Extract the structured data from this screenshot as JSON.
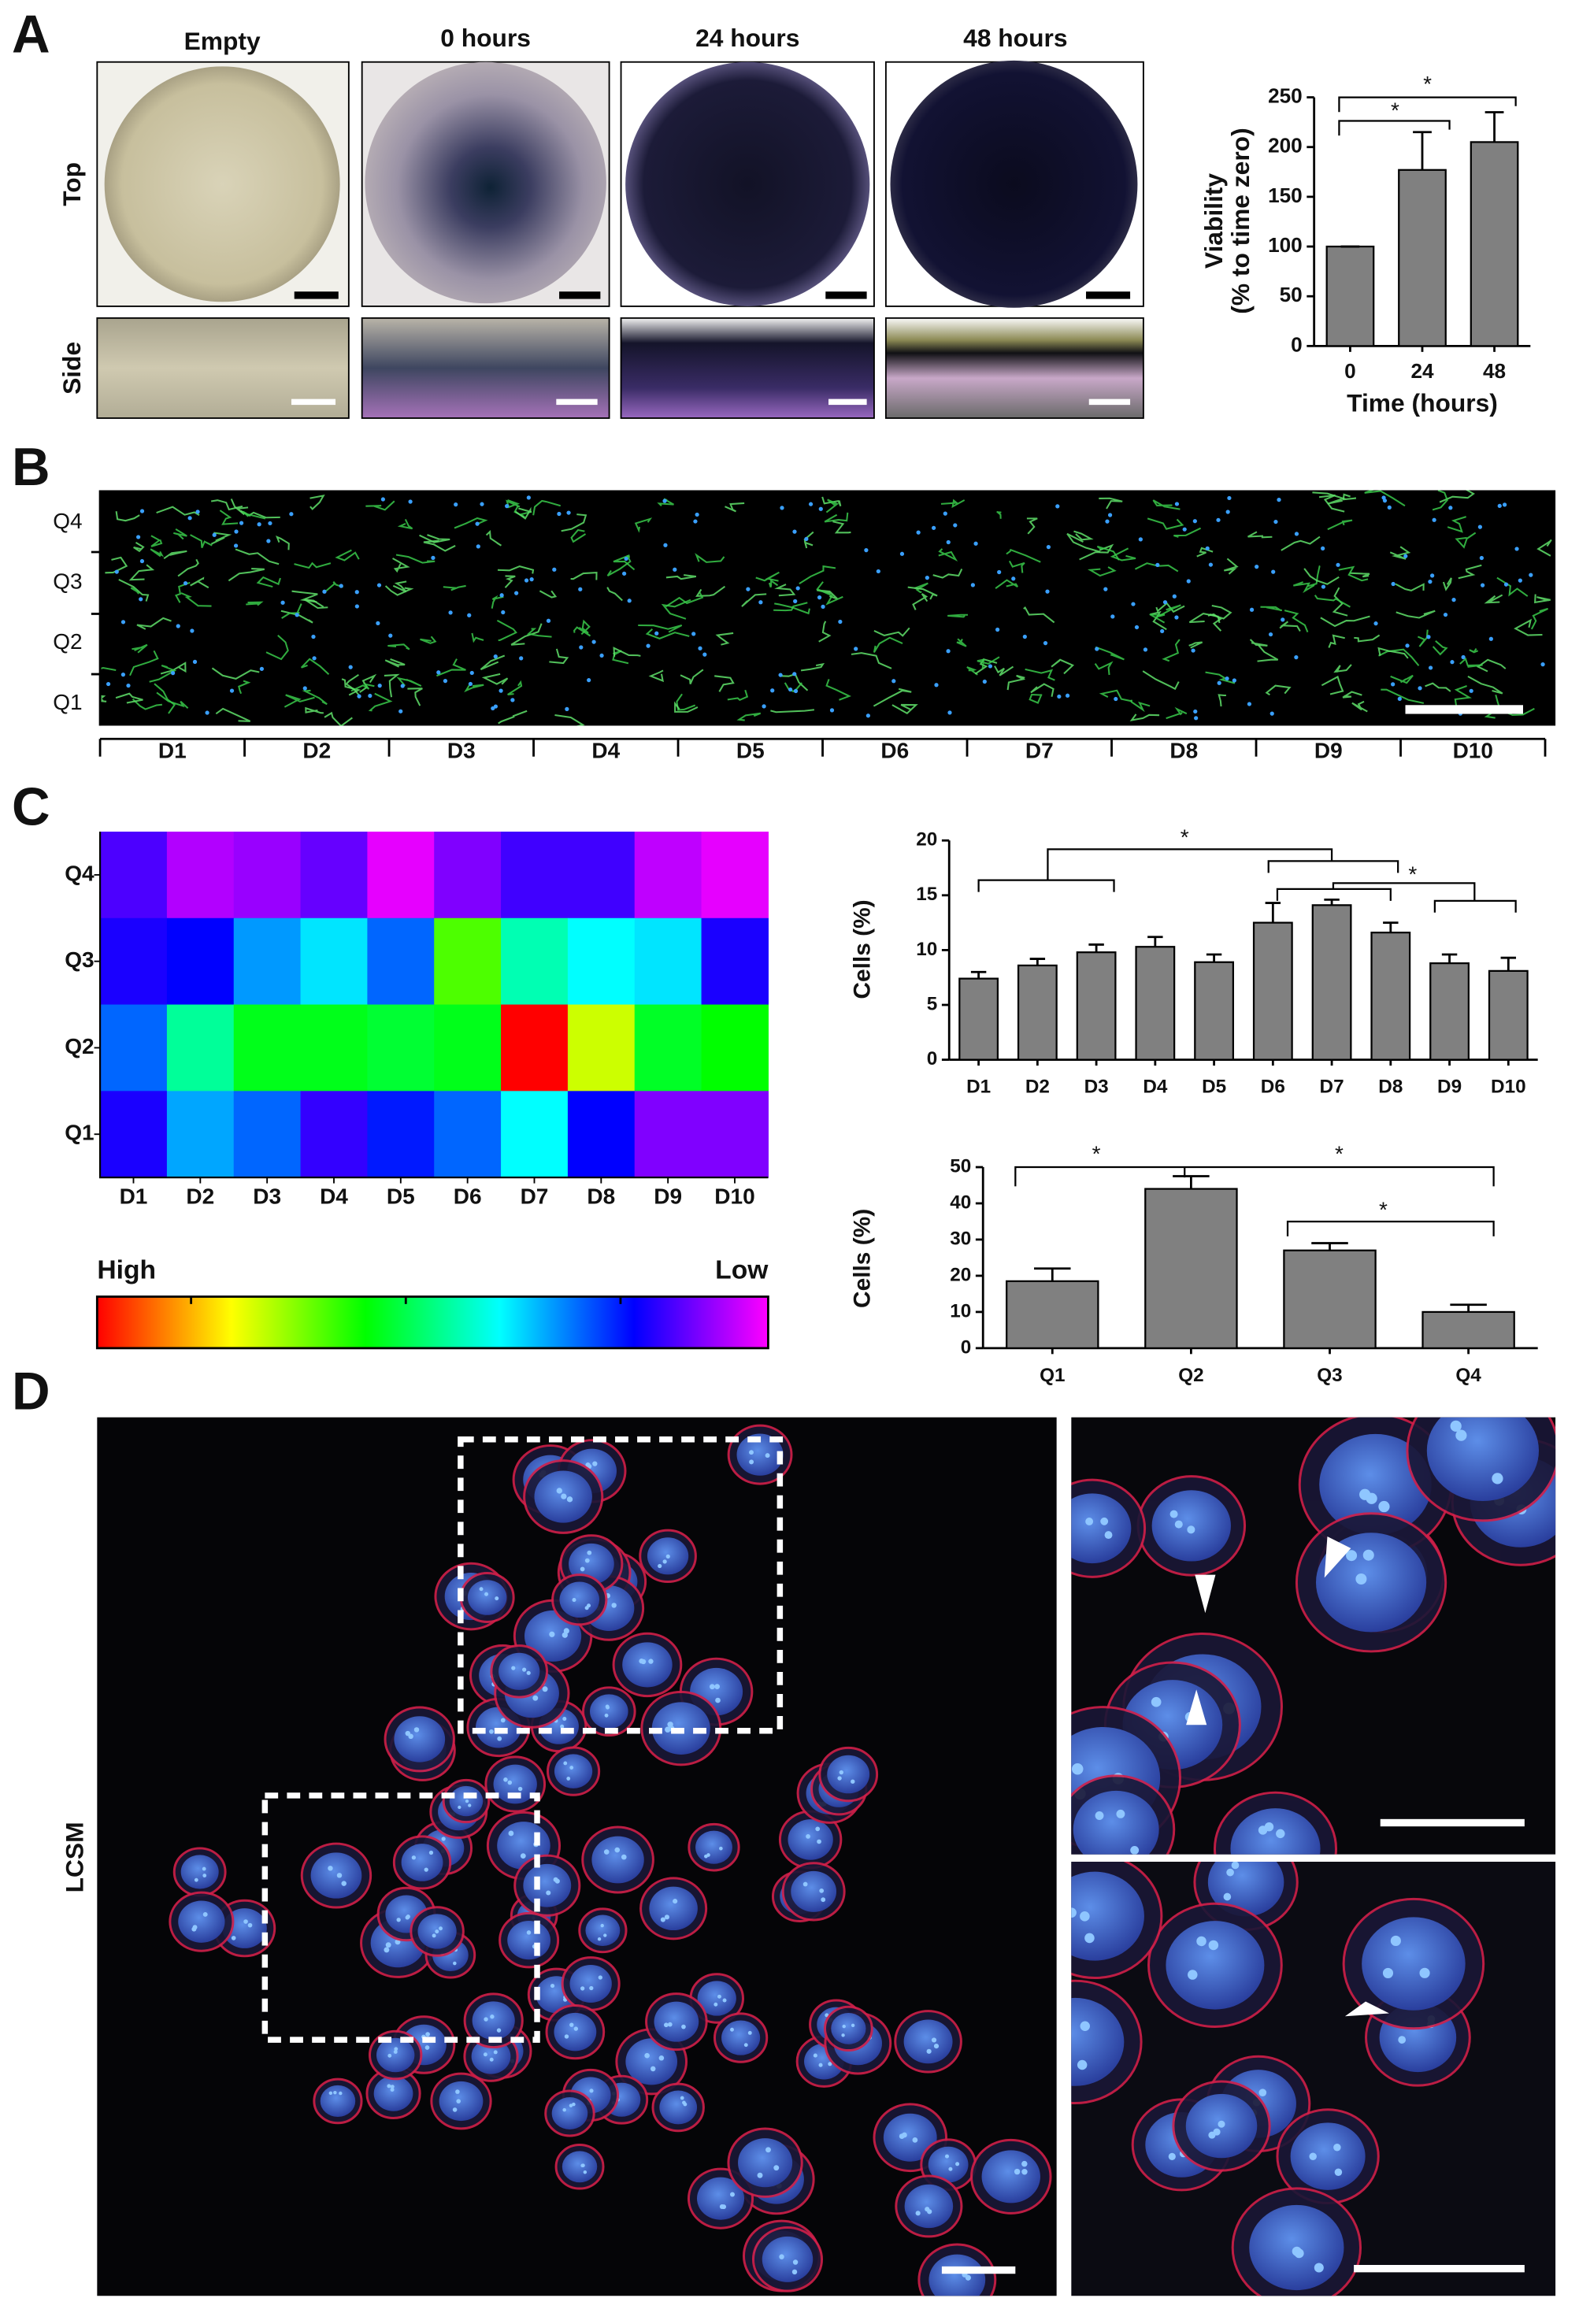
{
  "panel_labels": [
    "A",
    "B",
    "C",
    "D"
  ],
  "panel_a": {
    "columns": [
      "Empty",
      "0 hours",
      "24 hours",
      "48 hours"
    ],
    "rows": [
      "Top",
      "Side"
    ]
  },
  "panel_b": {
    "rows": [
      "Q4",
      "Q3",
      "Q2",
      "Q1"
    ],
    "columns": [
      "D1",
      "D2",
      "D3",
      "D4",
      "D5",
      "D6",
      "D7",
      "D8",
      "D9",
      "D10"
    ]
  },
  "panel_d": {
    "label": "LCSM"
  },
  "chart_data": [
    {
      "type": "bar",
      "title_panel": "A",
      "ylabel": [
        "Viability",
        "(% to time zero)"
      ],
      "xlabel": "Time (hours)",
      "categories": [
        "0",
        "24",
        "48"
      ],
      "values": [
        100,
        177,
        205
      ],
      "errors": [
        0,
        38,
        30
      ],
      "color": "#808080",
      "ylim": [
        0,
        250
      ],
      "yticks": [
        0,
        50,
        100,
        150,
        200,
        250
      ],
      "annotations": [
        "*",
        "*"
      ]
    },
    {
      "type": "heatmap",
      "rows": [
        "Q4",
        "Q3",
        "Q2",
        "Q1"
      ],
      "categories": [
        "D1",
        "D2",
        "D3",
        "D4",
        "D5",
        "D6",
        "D7",
        "D8",
        "D9",
        "D10"
      ],
      "values": [
        [
          14,
          6,
          8,
          12,
          2,
          10,
          15,
          15,
          5,
          2
        ],
        [
          18,
          20,
          32,
          38,
          28,
          66,
          46,
          40,
          38,
          18
        ],
        [
          28,
          48,
          58,
          58,
          56,
          58,
          100,
          76,
          57,
          60
        ],
        [
          18,
          33,
          28,
          16,
          22,
          28,
          40,
          20,
          10,
          10
        ]
      ],
      "zlim": [
        0,
        100
      ],
      "colormap": [
        "#ff0000",
        "#ffff00",
        "#00ff00",
        "#00ffff",
        "#0000ff",
        "#ff00ff"
      ],
      "colorbar": {
        "high": "High",
        "low": "Low"
      }
    },
    {
      "type": "bar",
      "ylabel": [
        "Cells (%)"
      ],
      "categories": [
        "D1",
        "D2",
        "D3",
        "D4",
        "D5",
        "D6",
        "D7",
        "D8",
        "D9",
        "D10"
      ],
      "values": [
        7.4,
        8.6,
        9.8,
        10.3,
        8.9,
        12.5,
        14.1,
        11.6,
        8.8,
        8.1
      ],
      "errors": [
        0.6,
        0.6,
        0.7,
        0.9,
        0.7,
        1.8,
        0.5,
        0.9,
        0.8,
        1.2
      ],
      "color": "#808080",
      "ylim": [
        0,
        20
      ],
      "yticks": [
        0,
        5,
        10,
        15,
        20
      ],
      "annotations": [
        "*",
        "*"
      ]
    },
    {
      "type": "bar",
      "ylabel": [
        "Cells (%)"
      ],
      "categories": [
        "Q1",
        "Q2",
        "Q3",
        "Q4"
      ],
      "values": [
        18.5,
        44,
        27,
        10
      ],
      "errors": [
        3.5,
        3.5,
        2,
        2
      ],
      "color": "#808080",
      "ylim": [
        0,
        50
      ],
      "yticks": [
        0,
        10,
        20,
        30,
        40,
        50
      ],
      "annotations": [
        "*",
        "*",
        "*"
      ]
    }
  ]
}
